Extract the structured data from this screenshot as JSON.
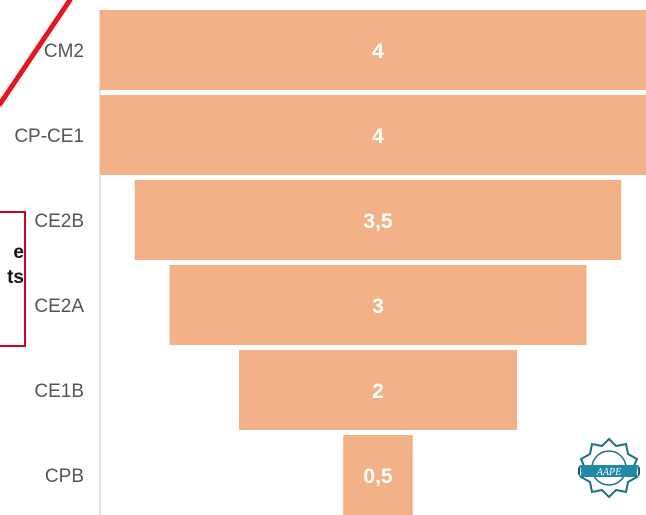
{
  "colors": {
    "bar": "#f2b186",
    "bar_label": "#ffffff",
    "category_label": "#555555",
    "axis": "#d9d9d9",
    "annotation_border": "#d0021b",
    "annotation_line": "#e8141e"
  },
  "annotation": {
    "line1": "e",
    "line2": "ts"
  },
  "logo": {
    "text": "AAPE",
    "icon": "badge-seal-icon"
  },
  "chart_data": {
    "type": "bar",
    "orientation": "horizontal-centered-funnel",
    "categories": [
      "CM2",
      "CP-CE1",
      "CE2B",
      "CE2A",
      "CE1B",
      "CPB"
    ],
    "values": [
      4,
      4,
      3.5,
      3,
      2,
      0.5
    ],
    "labels": [
      "4",
      "4",
      "3,5",
      "3",
      "2",
      "0,5"
    ],
    "xlim": [
      0,
      4
    ],
    "title": "",
    "xlabel": "",
    "ylabel": "",
    "grid": false,
    "legend": "none"
  }
}
